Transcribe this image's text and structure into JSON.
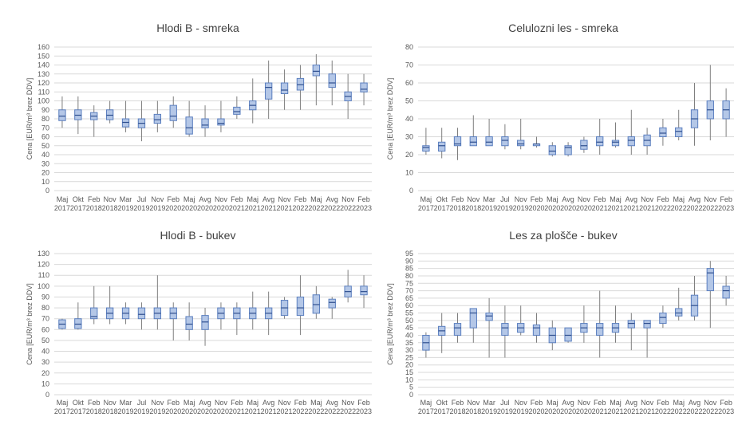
{
  "chart_data": [
    {
      "type": "box",
      "title": "Hlodi B - smreka",
      "ylabel": "Cena [EUR/m³ brez DDV]",
      "ylim": [
        0,
        160
      ],
      "ystep": 10,
      "categories": [
        [
          "Maj",
          "2017"
        ],
        [
          "Okt",
          "2017"
        ],
        [
          "Feb",
          "2018"
        ],
        [
          "Nov",
          "2018"
        ],
        [
          "Mar",
          "2019"
        ],
        [
          "Jul",
          "2019"
        ],
        [
          "Nov",
          "2019"
        ],
        [
          "Feb",
          "2020"
        ],
        [
          "Maj",
          "2020"
        ],
        [
          "Avg",
          "2020"
        ],
        [
          "Nov",
          "2020"
        ],
        [
          "Feb",
          "2021"
        ],
        [
          "Maj",
          "2021"
        ],
        [
          "Avg",
          "2021"
        ],
        [
          "Nov",
          "2021"
        ],
        [
          "Feb",
          "2022"
        ],
        [
          "Maj",
          "2022"
        ],
        [
          "Avg",
          "2022"
        ],
        [
          "Nov",
          "2022"
        ],
        [
          "Feb",
          "2023"
        ]
      ],
      "boxes": [
        {
          "min": 70,
          "q1": 78,
          "median": 83,
          "q3": 90,
          "max": 105
        },
        {
          "min": 63,
          "q1": 79,
          "median": 84,
          "q3": 90,
          "max": 105
        },
        {
          "min": 60,
          "q1": 79,
          "median": 83,
          "q3": 87,
          "max": 95
        },
        {
          "min": 75,
          "q1": 79,
          "median": 84,
          "q3": 90,
          "max": 100
        },
        {
          "min": 65,
          "q1": 71,
          "median": 76,
          "q3": 80,
          "max": 100
        },
        {
          "min": 55,
          "q1": 70,
          "median": 75,
          "q3": 80,
          "max": 100
        },
        {
          "min": 65,
          "q1": 75,
          "median": 79,
          "q3": 85,
          "max": 100
        },
        {
          "min": 70,
          "q1": 78,
          "median": 83,
          "q3": 95,
          "max": 105
        },
        {
          "min": 60,
          "q1": 63,
          "median": 70,
          "q3": 82,
          "max": 100
        },
        {
          "min": 60,
          "q1": 70,
          "median": 73,
          "q3": 80,
          "max": 95
        },
        {
          "min": 65,
          "q1": 73,
          "median": 75,
          "q3": 80,
          "max": 100
        },
        {
          "min": 80,
          "q1": 85,
          "median": 88,
          "q3": 93,
          "max": 105
        },
        {
          "min": 75,
          "q1": 90,
          "median": 95,
          "q3": 100,
          "max": 125
        },
        {
          "min": 80,
          "q1": 102,
          "median": 115,
          "q3": 120,
          "max": 145
        },
        {
          "min": 90,
          "q1": 108,
          "median": 112,
          "q3": 120,
          "max": 135
        },
        {
          "min": 90,
          "q1": 112,
          "median": 118,
          "q3": 125,
          "max": 140
        },
        {
          "min": 95,
          "q1": 128,
          "median": 133,
          "q3": 140,
          "max": 152
        },
        {
          "min": 95,
          "q1": 115,
          "median": 120,
          "q3": 130,
          "max": 145
        },
        {
          "min": 80,
          "q1": 100,
          "median": 105,
          "q3": 110,
          "max": 130
        },
        {
          "min": 95,
          "q1": 110,
          "median": 113,
          "q3": 120,
          "max": 130
        }
      ]
    },
    {
      "type": "box",
      "title": "Celulozni les - smreka",
      "ylabel": "Cena [EUR/m³ brez DDV]",
      "ylim": [
        0,
        80
      ],
      "ystep": 10,
      "categories": [
        [
          "Maj",
          "2017"
        ],
        [
          "Okt",
          "2017"
        ],
        [
          "Feb",
          "2018"
        ],
        [
          "Nov",
          "2018"
        ],
        [
          "Mar",
          "2019"
        ],
        [
          "Jul",
          "2019"
        ],
        [
          "Nov",
          "2019"
        ],
        [
          "Feb",
          "2020"
        ],
        [
          "Maj",
          "2020"
        ],
        [
          "Avg",
          "2020"
        ],
        [
          "Nov",
          "2020"
        ],
        [
          "Feb",
          "2021"
        ],
        [
          "Maj",
          "2021"
        ],
        [
          "Avg",
          "2021"
        ],
        [
          "Nov",
          "2021"
        ],
        [
          "Feb",
          "2022"
        ],
        [
          "Maj",
          "2022"
        ],
        [
          "Avg",
          "2022"
        ],
        [
          "Nov",
          "2022"
        ],
        [
          "Feb",
          "2023"
        ]
      ],
      "boxes": [
        {
          "min": 20,
          "q1": 22,
          "median": 24,
          "q3": 25,
          "max": 35
        },
        {
          "min": 18,
          "q1": 22,
          "median": 25,
          "q3": 27,
          "max": 35
        },
        {
          "min": 17,
          "q1": 25,
          "median": 26,
          "q3": 30,
          "max": 35
        },
        {
          "min": 25,
          "q1": 25,
          "median": 27,
          "q3": 30,
          "max": 42
        },
        {
          "min": 25,
          "q1": 25,
          "median": 27,
          "q3": 30,
          "max": 40
        },
        {
          "min": 23,
          "q1": 25,
          "median": 28,
          "q3": 30,
          "max": 37
        },
        {
          "min": 23,
          "q1": 25,
          "median": 26,
          "q3": 28,
          "max": 40
        },
        {
          "min": 24,
          "q1": 25,
          "median": 26,
          "q3": 26,
          "max": 30
        },
        {
          "min": 19,
          "q1": 20,
          "median": 22,
          "q3": 25,
          "max": 27
        },
        {
          "min": 19,
          "q1": 20,
          "median": 24,
          "q3": 25,
          "max": 27
        },
        {
          "min": 21,
          "q1": 23,
          "median": 25,
          "q3": 28,
          "max": 30
        },
        {
          "min": 20,
          "q1": 25,
          "median": 27,
          "q3": 30,
          "max": 40
        },
        {
          "min": 24,
          "q1": 25,
          "median": 27,
          "q3": 28,
          "max": 38
        },
        {
          "min": 20,
          "q1": 25,
          "median": 28,
          "q3": 30,
          "max": 45
        },
        {
          "min": 20,
          "q1": 25,
          "median": 28,
          "q3": 31,
          "max": 35
        },
        {
          "min": 25,
          "q1": 30,
          "median": 32,
          "q3": 35,
          "max": 40
        },
        {
          "min": 28,
          "q1": 30,
          "median": 33,
          "q3": 35,
          "max": 45
        },
        {
          "min": 25,
          "q1": 35,
          "median": 40,
          "q3": 45,
          "max": 60
        },
        {
          "min": 28,
          "q1": 40,
          "median": 45,
          "q3": 50,
          "max": 70
        },
        {
          "min": 30,
          "q1": 40,
          "median": 45,
          "q3": 50,
          "max": 57
        }
      ]
    },
    {
      "type": "box",
      "title": "Hlodi B - bukev",
      "ylabel": "Cena [EUR/m³ brez DDV]",
      "ylim": [
        0,
        130
      ],
      "ystep": 10,
      "categories": [
        [
          "Maj",
          "2017"
        ],
        [
          "Okt",
          "2017"
        ],
        [
          "Feb",
          "2018"
        ],
        [
          "Nov",
          "2018"
        ],
        [
          "Mar",
          "2019"
        ],
        [
          "Jul",
          "2019"
        ],
        [
          "Nov",
          "2019"
        ],
        [
          "Feb",
          "2020"
        ],
        [
          "Maj",
          "2020"
        ],
        [
          "Avg",
          "2020"
        ],
        [
          "Nov",
          "2020"
        ],
        [
          "Feb",
          "2021"
        ],
        [
          "Maj",
          "2021"
        ],
        [
          "Avg",
          "2021"
        ],
        [
          "Nov",
          "2021"
        ],
        [
          "Feb",
          "2022"
        ],
        [
          "Maj",
          "2022"
        ],
        [
          "Avg",
          "2022"
        ],
        [
          "Nov",
          "2022"
        ],
        [
          "Feb",
          "2023"
        ]
      ],
      "boxes": [
        {
          "min": 60,
          "q1": 61,
          "median": 65,
          "q3": 69,
          "max": 70
        },
        {
          "min": 60,
          "q1": 61,
          "median": 65,
          "q3": 70,
          "max": 85
        },
        {
          "min": 65,
          "q1": 70,
          "median": 72,
          "q3": 80,
          "max": 100
        },
        {
          "min": 65,
          "q1": 70,
          "median": 75,
          "q3": 80,
          "max": 100
        },
        {
          "min": 65,
          "q1": 70,
          "median": 75,
          "q3": 80,
          "max": 85
        },
        {
          "min": 60,
          "q1": 70,
          "median": 74,
          "q3": 80,
          "max": 85
        },
        {
          "min": 60,
          "q1": 70,
          "median": 75,
          "q3": 80,
          "max": 110
        },
        {
          "min": 50,
          "q1": 70,
          "median": 75,
          "q3": 80,
          "max": 85
        },
        {
          "min": 50,
          "q1": 60,
          "median": 65,
          "q3": 72,
          "max": 85
        },
        {
          "min": 45,
          "q1": 60,
          "median": 67,
          "q3": 73,
          "max": 80
        },
        {
          "min": 60,
          "q1": 70,
          "median": 75,
          "q3": 80,
          "max": 85
        },
        {
          "min": 55,
          "q1": 70,
          "median": 75,
          "q3": 80,
          "max": 85
        },
        {
          "min": 60,
          "q1": 70,
          "median": 75,
          "q3": 80,
          "max": 95
        },
        {
          "min": 55,
          "q1": 70,
          "median": 75,
          "q3": 80,
          "max": 95
        },
        {
          "min": 70,
          "q1": 73,
          "median": 80,
          "q3": 87,
          "max": 90
        },
        {
          "min": 55,
          "q1": 73,
          "median": 80,
          "q3": 90,
          "max": 110
        },
        {
          "min": 70,
          "q1": 75,
          "median": 83,
          "q3": 92,
          "max": 100
        },
        {
          "min": 70,
          "q1": 80,
          "median": 85,
          "q3": 88,
          "max": 90
        },
        {
          "min": 85,
          "q1": 90,
          "median": 95,
          "q3": 100,
          "max": 115
        },
        {
          "min": 80,
          "q1": 92,
          "median": 95,
          "q3": 100,
          "max": 110
        }
      ]
    },
    {
      "type": "box",
      "title": "Les za plošče - bukev",
      "ylabel": "Cena [EUR/m³ brez DDV]",
      "ylim": [
        0,
        95
      ],
      "ystep": 5,
      "categories": [
        [
          "Maj",
          "2017"
        ],
        [
          "Okt",
          "2017"
        ],
        [
          "Feb",
          "2018"
        ],
        [
          "Nov",
          "2018"
        ],
        [
          "Mar",
          "2019"
        ],
        [
          "Jul",
          "2019"
        ],
        [
          "Nov",
          "2019"
        ],
        [
          "Feb",
          "2020"
        ],
        [
          "Maj",
          "2020"
        ],
        [
          "Avg",
          "2020"
        ],
        [
          "Nov",
          "2020"
        ],
        [
          "Feb",
          "2021"
        ],
        [
          "Maj",
          "2021"
        ],
        [
          "Avg",
          "2021"
        ],
        [
          "Nov",
          "2021"
        ],
        [
          "Feb",
          "2022"
        ],
        [
          "Maj",
          "2022"
        ],
        [
          "Avg",
          "2022"
        ],
        [
          "Nov",
          "2022"
        ],
        [
          "Feb",
          "2023"
        ]
      ],
      "boxes": [
        {
          "min": 25,
          "q1": 30,
          "median": 35,
          "q3": 40,
          "max": 42
        },
        {
          "min": 28,
          "q1": 40,
          "median": 43,
          "q3": 46,
          "max": 55
        },
        {
          "min": 35,
          "q1": 40,
          "median": 45,
          "q3": 48,
          "max": 55
        },
        {
          "min": 35,
          "q1": 45,
          "median": 55,
          "q3": 58,
          "max": 58
        },
        {
          "min": 25,
          "q1": 50,
          "median": 53,
          "q3": 55,
          "max": 65
        },
        {
          "min": 25,
          "q1": 40,
          "median": 45,
          "q3": 48,
          "max": 60
        },
        {
          "min": 40,
          "q1": 42,
          "median": 45,
          "q3": 48,
          "max": 60
        },
        {
          "min": 35,
          "q1": 40,
          "median": 45,
          "q3": 47,
          "max": 55
        },
        {
          "min": 30,
          "q1": 35,
          "median": 40,
          "q3": 45,
          "max": 50
        },
        {
          "min": 35,
          "q1": 36,
          "median": 40,
          "q3": 45,
          "max": 45
        },
        {
          "min": 35,
          "q1": 42,
          "median": 45,
          "q3": 48,
          "max": 60
        },
        {
          "min": 25,
          "q1": 40,
          "median": 45,
          "q3": 48,
          "max": 70
        },
        {
          "min": 35,
          "q1": 42,
          "median": 45,
          "q3": 48,
          "max": 60
        },
        {
          "min": 30,
          "q1": 45,
          "median": 48,
          "q3": 50,
          "max": 55
        },
        {
          "min": 25,
          "q1": 45,
          "median": 48,
          "q3": 50,
          "max": 50
        },
        {
          "min": 45,
          "q1": 48,
          "median": 52,
          "q3": 55,
          "max": 60
        },
        {
          "min": 50,
          "q1": 53,
          "median": 55,
          "q3": 58,
          "max": 72
        },
        {
          "min": 50,
          "q1": 53,
          "median": 60,
          "q3": 67,
          "max": 80
        },
        {
          "min": 45,
          "q1": 70,
          "median": 82,
          "q3": 85,
          "max": 90
        },
        {
          "min": 60,
          "q1": 65,
          "median": 70,
          "q3": 73,
          "max": 80
        }
      ]
    }
  ]
}
